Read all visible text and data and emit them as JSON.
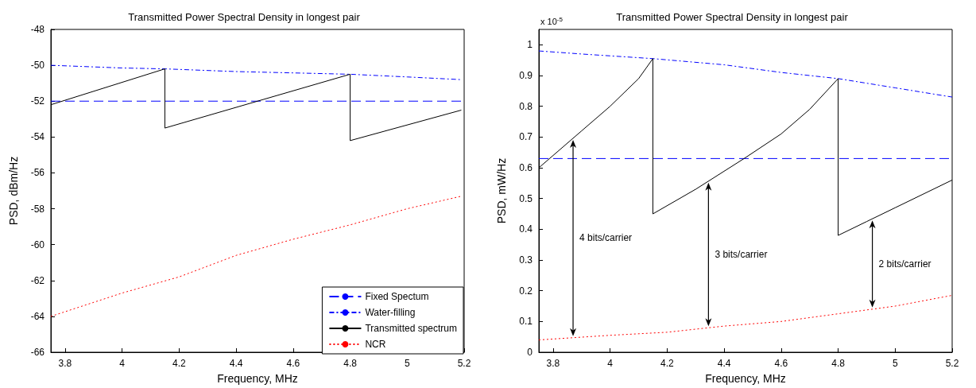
{
  "chart_data": [
    {
      "type": "line",
      "title": "Transmitted Power Spectral Density in longest pair",
      "xlabel": "Frequency, MHz",
      "ylabel": "PSD, dBm/Hz",
      "xlim": [
        3.75,
        5.2
      ],
      "xticks": [
        3.8,
        4,
        4.2,
        4.4,
        4.6,
        4.8,
        5,
        5.2
      ],
      "ylim": [
        -66,
        -48
      ],
      "yticks": [
        -66,
        -64,
        -62,
        -60,
        -58,
        -56,
        -54,
        -52,
        -50,
        -48
      ],
      "marker": "none",
      "legend": "bottom right",
      "series": [
        {
          "name": "Fixed Spectum",
          "color": "#0000ff",
          "line_style": "dashed",
          "x": [
            3.75,
            5.2
          ],
          "values": [
            -52,
            -52
          ]
        },
        {
          "name": "Water-filling",
          "color": "#0000ff",
          "line_style": "dashdot",
          "x": [
            3.75,
            4.0,
            4.15,
            4.4,
            4.8,
            5.0,
            5.19
          ],
          "values": [
            -50.0,
            -50.15,
            -50.2,
            -50.35,
            -50.5,
            -50.65,
            -50.8
          ]
        },
        {
          "name": "Transmitted spectrum",
          "color": "#000000",
          "line_style": "solid",
          "x": [
            3.75,
            4.15,
            4.15,
            4.8,
            4.8,
            5.19
          ],
          "values": [
            -52.2,
            -50.2,
            -53.5,
            -50.5,
            -54.2,
            -52.5
          ]
        },
        {
          "name": "NCR",
          "color": "#ff0000",
          "line_style": "dotted",
          "x": [
            3.75,
            4.0,
            4.2,
            4.4,
            4.6,
            4.8,
            5.0,
            5.19
          ],
          "values": [
            -64,
            -62.7,
            -61.8,
            -60.6,
            -59.7,
            -58.9,
            -58.0,
            -57.3
          ]
        }
      ]
    },
    {
      "type": "line",
      "title": "Transmitted Power Spectral Density in longest pair",
      "xlabel": "Frequency, MHz",
      "ylabel": "PSD, mW/Hz",
      "xlim": [
        3.75,
        5.2
      ],
      "xticks": [
        3.8,
        4,
        4.2,
        4.4,
        4.6,
        4.8,
        5,
        5.2
      ],
      "ylim": [
        0,
        1.05
      ],
      "yticks": [
        0,
        0.1,
        0.2,
        0.3,
        0.4,
        0.5,
        0.6,
        0.7,
        0.8,
        0.9,
        1
      ],
      "marker": "none",
      "annotations": [
        "x 10$^{-5}$",
        "4 bits/carrier",
        "3 bits/carrier",
        "2 bits/carrier"
      ],
      "series": [
        {
          "color": "#0000ff",
          "line_style": "dashed",
          "x": [
            3.75,
            5.2
          ],
          "values": [
            0.63,
            0.63
          ]
        },
        {
          "color": "#0000ff",
          "line_style": "dashdot",
          "x": [
            3.75,
            3.9,
            4.15,
            4.4,
            4.6,
            4.8,
            5.0,
            5.2
          ],
          "values": [
            0.98,
            0.97,
            0.955,
            0.935,
            0.91,
            0.89,
            0.86,
            0.83
          ]
        },
        {
          "color": "#000000",
          "line_style": "solid",
          "x": [
            3.75,
            3.9,
            4.0,
            4.1,
            4.15,
            4.15,
            4.3,
            4.47,
            4.6,
            4.7,
            4.8,
            4.8,
            4.9,
            5.0,
            5.2
          ],
          "values": [
            0.6,
            0.72,
            0.8,
            0.89,
            0.955,
            0.45,
            0.53,
            0.63,
            0.71,
            0.79,
            0.89,
            0.38,
            0.425,
            0.47,
            0.56
          ]
        },
        {
          "color": "#ff0000",
          "line_style": "dotted",
          "x": [
            3.75,
            4.0,
            4.2,
            4.4,
            4.6,
            4.8,
            5.0,
            5.2
          ],
          "values": [
            0.04,
            0.055,
            0.065,
            0.085,
            0.1,
            0.125,
            0.15,
            0.185
          ]
        }
      ]
    }
  ]
}
